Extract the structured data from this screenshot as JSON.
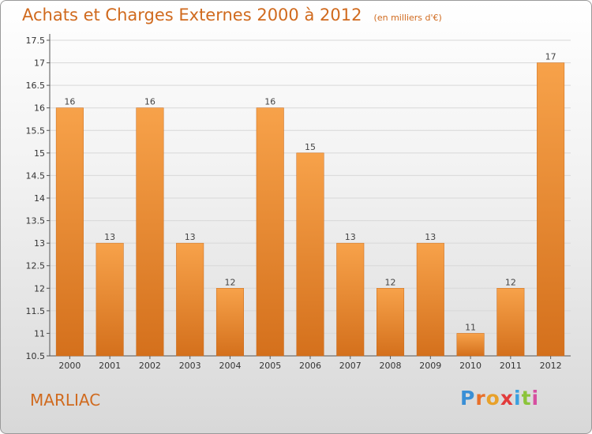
{
  "header": {
    "title": "Achats et Charges Externes 2000 à 2012",
    "unit": "(en milliers d'€)"
  },
  "footer": {
    "town": "MARLIAC",
    "logo_letters": [
      "P",
      "r",
      "o",
      "x",
      "i",
      "t",
      "i"
    ],
    "logo_colors": [
      "#3a8fd6",
      "#e8702a",
      "#e8a12a",
      "#e23b3b",
      "#3aa0e0",
      "#8cc43a",
      "#d64fa0"
    ]
  },
  "chart_data": {
    "type": "bar",
    "title": "Achats et Charges Externes 2000 à 2012",
    "unit": "(en milliers d'€)",
    "categories": [
      "2000",
      "2001",
      "2002",
      "2003",
      "2004",
      "2005",
      "2006",
      "2007",
      "2008",
      "2009",
      "2010",
      "2011",
      "2012"
    ],
    "values": [
      16,
      13,
      16,
      13,
      12,
      16,
      15,
      13,
      12,
      13,
      11,
      12,
      17
    ],
    "value_labels": [
      "16",
      "13",
      "16",
      "13",
      "12",
      "16",
      "15",
      "13",
      "12",
      "13",
      "11",
      "12",
      "17"
    ],
    "yticks": [
      "10.5",
      "11",
      "11.5",
      "12",
      "12.5",
      "13",
      "13.5",
      "14",
      "14.5",
      "15",
      "15.5",
      "16",
      "16.5",
      "17",
      "17.5"
    ],
    "ylim": [
      10.5,
      17.5
    ],
    "grid": true,
    "bar_color": "#f0903a"
  }
}
